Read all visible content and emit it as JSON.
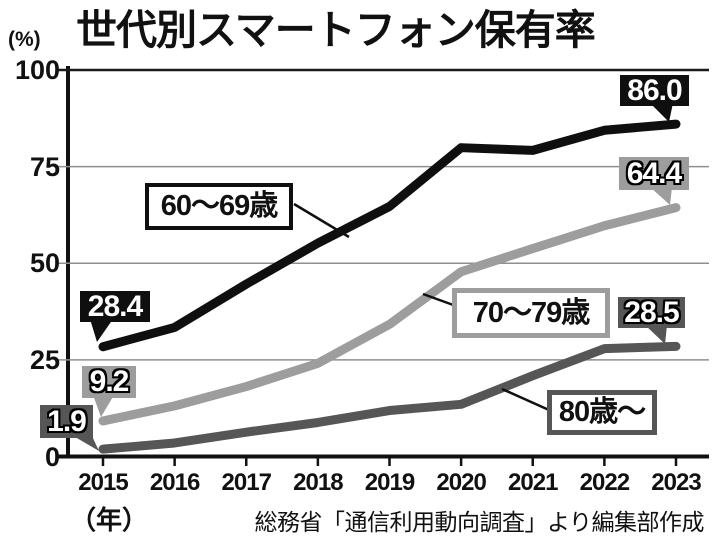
{
  "title": "世代別スマートフォン保有率",
  "y_unit_label": "(%)",
  "x_unit_label": "（年）",
  "source": "総務省「通信利用動向調査」より編集部作成",
  "chart_data": {
    "type": "line",
    "x": [
      "2015",
      "2016",
      "2017",
      "2018",
      "2019",
      "2020",
      "2021",
      "2022",
      "2023"
    ],
    "xlabel": "年",
    "ylabel": "%",
    "ylim": [
      0,
      100
    ],
    "yticks": [
      0,
      25,
      50,
      75,
      100
    ],
    "grid": true,
    "legend_position": "inline-labels",
    "series": [
      {
        "id": "60-69",
        "name": "60〜69歳",
        "color": "#0f0f0f",
        "values": [
          28.4,
          33.4,
          44.6,
          55.2,
          64.7,
          79.9,
          79.2,
          84.4,
          86.0
        ],
        "start_label": "28.4",
        "end_label": "86.0"
      },
      {
        "id": "70-79",
        "name": "70〜79歳",
        "color": "#9d9d9d",
        "values": [
          9.2,
          13.1,
          18.1,
          24.1,
          34.2,
          47.8,
          53.8,
          59.7,
          64.4
        ],
        "start_label": "9.2",
        "end_label": "64.4"
      },
      {
        "id": "80plus",
        "name": "80歳〜",
        "color": "#565656",
        "values": [
          1.9,
          3.5,
          6.3,
          8.8,
          11.9,
          13.5,
          20.9,
          27.9,
          28.5
        ],
        "start_label": "1.9",
        "end_label": "28.5"
      }
    ]
  }
}
